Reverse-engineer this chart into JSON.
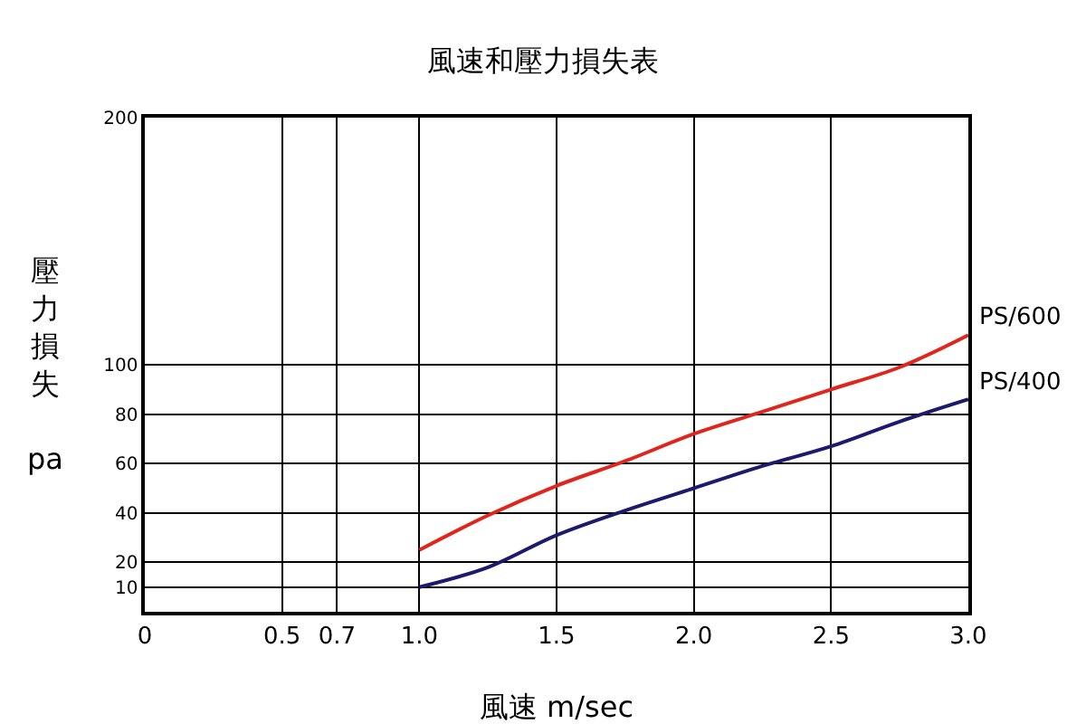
{
  "chart_data": {
    "type": "line",
    "title": "風速和壓力損失表",
    "xlabel": "風速 m/sec",
    "ylabel": "壓力損失 pa",
    "x": [
      1.0,
      1.25,
      1.5,
      1.75,
      2.0,
      2.25,
      2.5,
      2.75,
      3.0
    ],
    "series": [
      {
        "name": "PS/600",
        "color": "#e0261c",
        "values": [
          25,
          39,
          51,
          61,
          72,
          81,
          90,
          99,
          112
        ]
      },
      {
        "name": "PS/400",
        "color": "#1c1a6e",
        "values": [
          10,
          18,
          31,
          41,
          50,
          59,
          67,
          77,
          86
        ]
      }
    ],
    "xlim": [
      0,
      3
    ],
    "xticks": [
      0,
      0.5,
      0.7,
      {
        "value": 1,
        "label": "1.0"
      },
      1.5,
      {
        "value": 2,
        "label": "2.0"
      },
      2.5,
      {
        "value": 3,
        "label": "3.0"
      }
    ],
    "ylim": [
      0,
      200
    ],
    "yticks": [
      10,
      20,
      40,
      60,
      80,
      100,
      200
    ],
    "grid": true,
    "legend": false,
    "marker": "none",
    "line_style": "solid"
  }
}
